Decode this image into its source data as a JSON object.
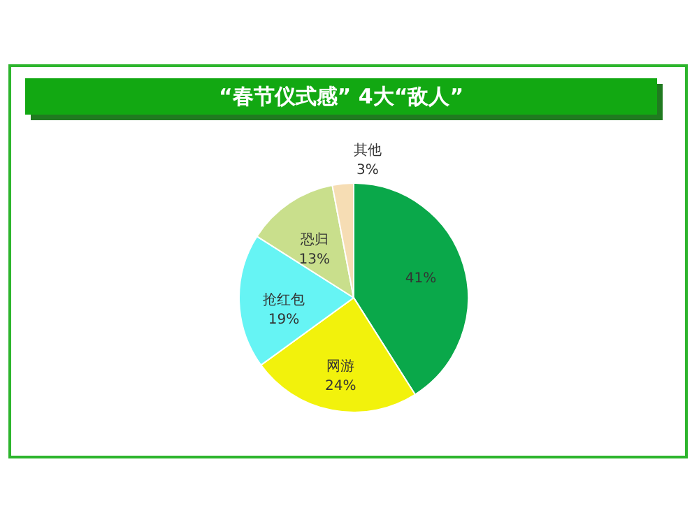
{
  "chart_data": {
    "type": "pie",
    "title": "“春节仪式感” 4大“敌人”",
    "categories": [
      null,
      "网游",
      "抢红包",
      "恐归",
      "其他"
    ],
    "values": [
      41,
      24,
      19,
      13,
      3
    ],
    "value_labels": [
      "41%",
      "24%",
      "19%",
      "13%",
      "3%"
    ],
    "colors": [
      "#0aa84a",
      "#f2f20c",
      "#66f4f4",
      "#c9df8c",
      "#f6ddb4"
    ]
  }
}
